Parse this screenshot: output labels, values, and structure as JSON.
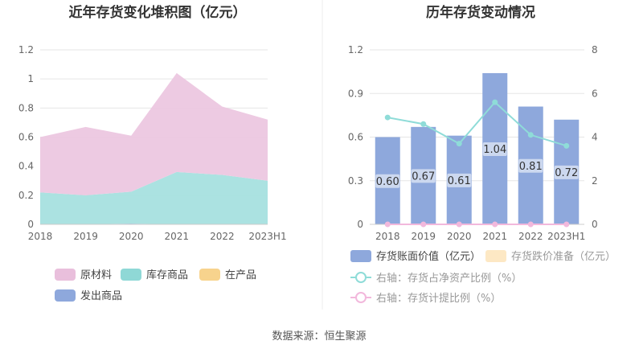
{
  "source": "数据来源：恒生聚源",
  "chart_data": [
    {
      "type": "area",
      "title": "近年存货变化堆积图（亿元）",
      "categories": [
        "2018",
        "2019",
        "2020",
        "2021",
        "2022",
        "2023H1"
      ],
      "ylim": [
        0,
        1.2
      ],
      "yticks": [
        "0",
        "0.2",
        "0.4",
        "0.6",
        "0.8",
        "1",
        "1.2"
      ],
      "stacked": true,
      "series": [
        {
          "name": "发出商品",
          "color": "#8ea8dc",
          "values": [
            0,
            0,
            0.005,
            0,
            0,
            0
          ]
        },
        {
          "name": "在产品",
          "color": "#f7d38d",
          "values": [
            0,
            0,
            0,
            0,
            0,
            0
          ]
        },
        {
          "name": "库存商品",
          "color": "#a6e0df",
          "values": [
            0.22,
            0.2,
            0.22,
            0.36,
            0.34,
            0.3
          ]
        },
        {
          "name": "原材料",
          "color": "#ecc7e0",
          "values": [
            0.38,
            0.47,
            0.385,
            0.68,
            0.47,
            0.42
          ]
        }
      ],
      "legend": [
        {
          "name": "原材料",
          "color": "#e9bfdc"
        },
        {
          "name": "库存商品",
          "color": "#8fd8d6"
        },
        {
          "name": "在产品",
          "color": "#f7d38d"
        },
        {
          "name": "发出商品",
          "color": "#8ea8dc"
        }
      ]
    },
    {
      "type": "bar+line",
      "title": "历年存货变动情况",
      "categories": [
        "2018",
        "2019",
        "2020",
        "2021",
        "2022",
        "2023H1"
      ],
      "ylim_left": [
        0,
        1.2
      ],
      "yticks_left": [
        "0",
        "0.3",
        "0.6",
        "0.9",
        "1.2"
      ],
      "ylim_right": [
        0,
        8
      ],
      "yticks_right": [
        "0",
        "2",
        "4",
        "6",
        "8"
      ],
      "bars": {
        "name": "存货账面价值（亿元）",
        "color": "#8ea8dc",
        "values": [
          0.6,
          0.67,
          0.61,
          1.04,
          0.81,
          0.72
        ],
        "labels": [
          "0.60",
          "0.67",
          "0.61",
          "1.04",
          "0.81",
          "0.72"
        ]
      },
      "bars_secondary": {
        "name": "存货跌价准备（亿元）",
        "color": "#fde8c4",
        "values": [
          0,
          0,
          0,
          0,
          0,
          0
        ]
      },
      "lines": [
        {
          "name": "右轴：存货占净资产比例（%）",
          "color": "#8fdcd8",
          "values": [
            4.9,
            4.6,
            3.7,
            5.6,
            4.1,
            3.6
          ]
        },
        {
          "name": "右轴：存货计提比例（%）",
          "color": "#f2b8dc",
          "values": [
            0,
            0,
            0,
            0,
            0,
            0
          ]
        }
      ]
    }
  ]
}
